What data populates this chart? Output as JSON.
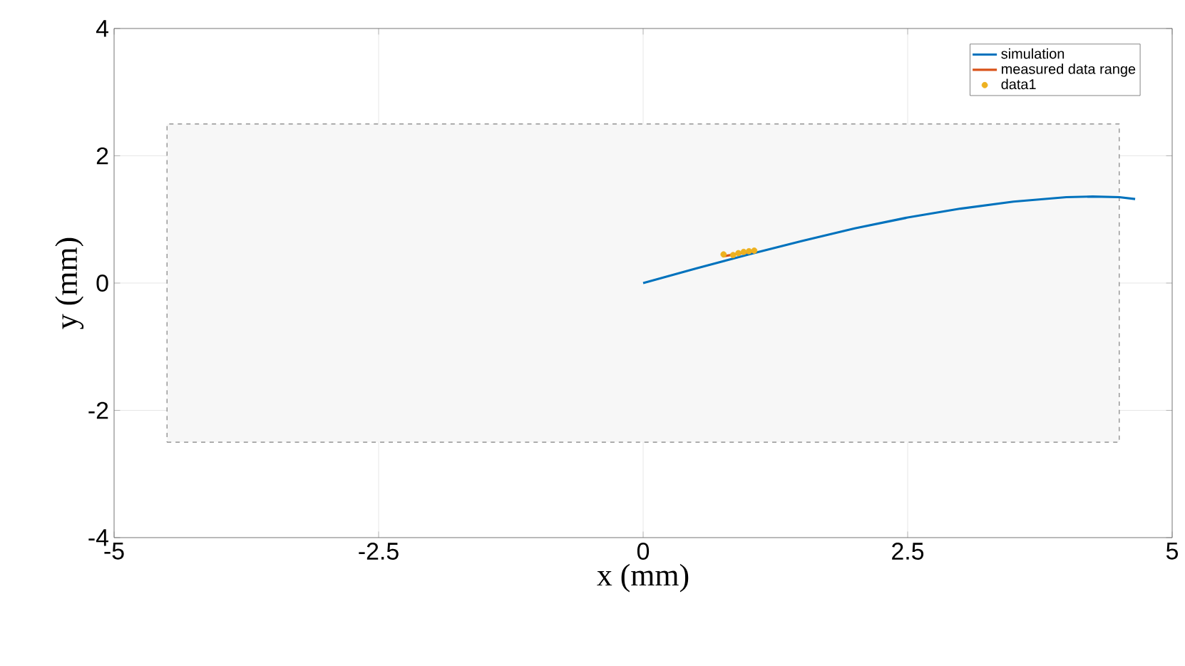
{
  "chart_data": {
    "type": "line",
    "xlabel": "x (mm)",
    "ylabel": "y (mm)",
    "xlim": [
      -5,
      5
    ],
    "ylim": [
      -4,
      4
    ],
    "xticks": [
      -5,
      -2.5,
      0,
      2.5,
      5
    ],
    "yticks": [
      -4,
      -2,
      0,
      2,
      4
    ],
    "grid": true,
    "legend": "top right",
    "series": [
      {
        "type": "area",
        "line_style": "dashed",
        "color": "#808080",
        "x": [
          -4.5,
          4.5,
          4.5,
          -4.5,
          -4.5
        ],
        "values": [
          -2.5,
          -2.5,
          2.5,
          2.5,
          -2.5
        ]
      },
      {
        "name": "simulation",
        "color": "#0072bd",
        "x": [
          0,
          0.5,
          1,
          1.5,
          2,
          2.5,
          3,
          3.5,
          4,
          4.25,
          4.5,
          4.65
        ],
        "values": [
          0,
          0.23,
          0.45,
          0.66,
          0.86,
          1.03,
          1.17,
          1.28,
          1.35,
          1.36,
          1.35,
          1.32
        ]
      },
      {
        "name": "measured data range",
        "color": "#d95319",
        "x": [
          0.75,
          0.9,
          1.05
        ],
        "values": [
          0.42,
          0.46,
          0.5
        ]
      },
      {
        "type": "scatter",
        "name": "data1",
        "marker": "circle",
        "color": "#edb120",
        "x": [
          0.76,
          0.85,
          0.9,
          0.95,
          1.0,
          1.05
        ],
        "values": [
          0.45,
          0.44,
          0.47,
          0.49,
          0.5,
          0.51
        ]
      }
    ]
  }
}
